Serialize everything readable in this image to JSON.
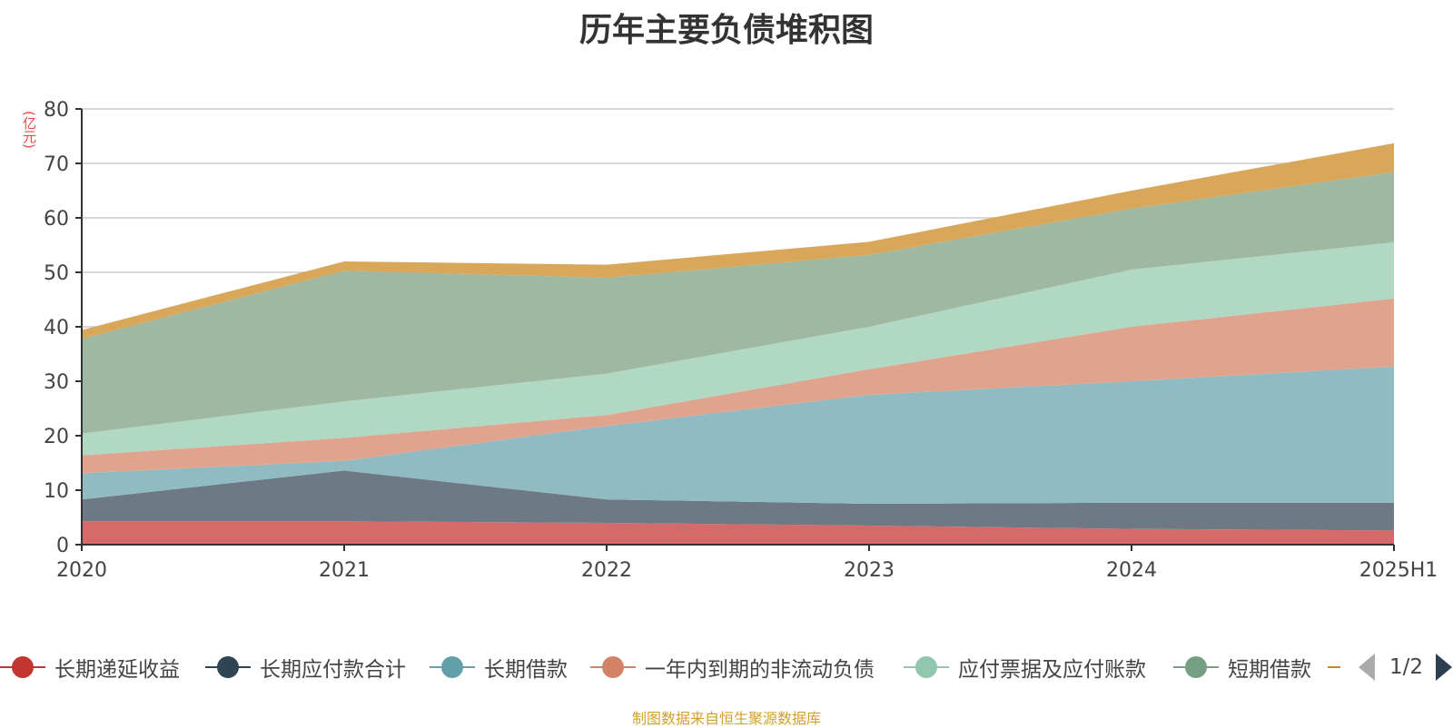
{
  "title": "历年主要负债堆积图",
  "unit_label": "(亿元)",
  "source_note": "制图数据来自恒生聚源数据库",
  "legend_page": "1/2",
  "chart_data": {
    "type": "area",
    "stacked": true,
    "title": "历年主要负债堆积图",
    "ylabel": "(亿元)",
    "ylim": [
      0,
      80
    ],
    "yticks": [
      0,
      10,
      20,
      30,
      40,
      50,
      60,
      70,
      80
    ],
    "x": [
      "2020",
      "2021",
      "2022",
      "2023",
      "2024",
      "2025H1"
    ],
    "grid": true,
    "legend_position": "bottom",
    "series": [
      {
        "name": "长期递延收益",
        "color": "#d46a6a",
        "legend_color": "#c23531",
        "values": [
          4.3,
          4.3,
          4.0,
          3.5,
          2.9,
          2.6
        ]
      },
      {
        "name": "长期应付款合计",
        "color": "#6d7a86",
        "legend_color": "#2f4554",
        "values": [
          4.0,
          9.3,
          4.3,
          4.0,
          4.8,
          5.1
        ]
      },
      {
        "name": "长期借款",
        "color": "#91bbc2",
        "legend_color": "#61a0a8",
        "values": [
          4.8,
          1.8,
          13.5,
          20.0,
          22.3,
          25.0
        ]
      },
      {
        "name": "一年内到期的非流动负债",
        "color": "#e0a38e",
        "legend_color": "#d48265",
        "values": [
          3.3,
          4.2,
          2.0,
          4.7,
          10.0,
          12.5
        ]
      },
      {
        "name": "应付票据及应付账款",
        "color": "#b1d8c3",
        "legend_color": "#91c7ae",
        "values": [
          4.0,
          6.7,
          7.6,
          7.8,
          10.5,
          10.3
        ]
      },
      {
        "name": "短期借款",
        "color": "#9eb8a1",
        "legend_color": "#749f83",
        "values": [
          17.4,
          24.0,
          17.6,
          13.2,
          11.2,
          12.9
        ]
      },
      {
        "name": "",
        "color": "#d9a75a",
        "legend_color": "#ca8622",
        "values": [
          1.6,
          1.7,
          2.4,
          2.4,
          3.3,
          5.3
        ]
      }
    ]
  }
}
